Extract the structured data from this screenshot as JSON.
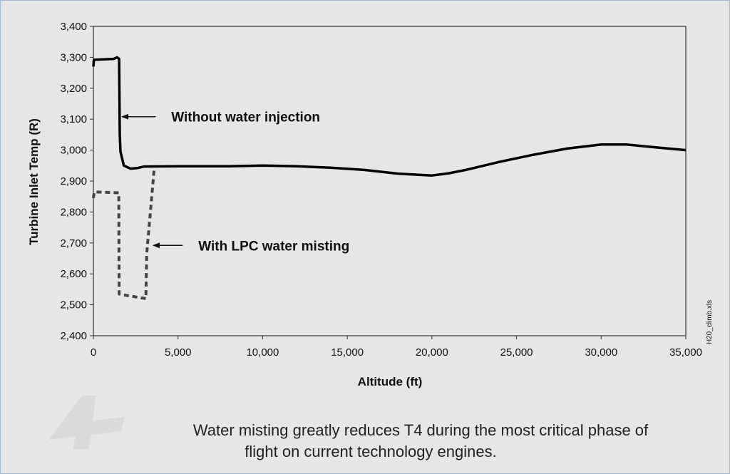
{
  "chart_data": {
    "type": "line",
    "title": "",
    "xlabel": "Altitude (ft)",
    "ylabel": "Turbine Inlet Temp (R)",
    "xlim": [
      0,
      35000
    ],
    "ylim": [
      2400,
      3400
    ],
    "x_ticks": [
      "0",
      "5,000",
      "10,000",
      "15,000",
      "20,000",
      "25,000",
      "30,000",
      "35,000"
    ],
    "y_ticks": [
      "2,400",
      "2,500",
      "2,600",
      "2,700",
      "2,800",
      "2,900",
      "3,000",
      "3,100",
      "3,200",
      "3,300",
      "3,400"
    ],
    "grid": false,
    "series": [
      {
        "name": "Without water injection",
        "style": "solid",
        "color": "#000000",
        "points": [
          [
            0,
            3270
          ],
          [
            30,
            3292
          ],
          [
            1200,
            3295
          ],
          [
            1400,
            3300
          ],
          [
            1520,
            3295
          ],
          [
            1560,
            3050
          ],
          [
            1600,
            2995
          ],
          [
            1800,
            2950
          ],
          [
            2200,
            2940
          ],
          [
            2600,
            2942
          ],
          [
            3000,
            2947
          ],
          [
            5000,
            2948
          ],
          [
            8000,
            2948
          ],
          [
            10000,
            2950
          ],
          [
            12000,
            2948
          ],
          [
            14000,
            2943
          ],
          [
            16000,
            2936
          ],
          [
            18000,
            2924
          ],
          [
            20000,
            2918
          ],
          [
            21000,
            2925
          ],
          [
            22000,
            2936
          ],
          [
            24000,
            2962
          ],
          [
            26000,
            2985
          ],
          [
            28000,
            3005
          ],
          [
            30000,
            3018
          ],
          [
            31500,
            3018
          ],
          [
            33000,
            3010
          ],
          [
            35000,
            3000
          ]
        ]
      },
      {
        "name": "With LPC water misting",
        "style": "dashed",
        "color": "#444444",
        "points": [
          [
            0,
            2845
          ],
          [
            50,
            2865
          ],
          [
            1500,
            2862
          ],
          [
            1520,
            2535
          ],
          [
            2000,
            2530
          ],
          [
            3100,
            2520
          ],
          [
            3150,
            2665
          ],
          [
            3600,
            2945
          ]
        ]
      }
    ],
    "annotations": [
      {
        "text": "Without water injection",
        "arrow_to": [
          1600,
          3108
        ],
        "text_anchor": [
          4600,
          3108
        ]
      },
      {
        "text": "With LPC water misting",
        "arrow_to": [
          3450,
          2692
        ],
        "text_anchor": [
          6200,
          2692
        ]
      }
    ],
    "side_note": "H20_climb.xls"
  },
  "caption": {
    "line1": "Water misting greatly reduces T4 during the most critical phase of",
    "line2": "flight on current technology engines."
  },
  "colors": {
    "background": "#e6e6e6",
    "frame": "#a8b8cc",
    "watermark": "#dadada"
  }
}
